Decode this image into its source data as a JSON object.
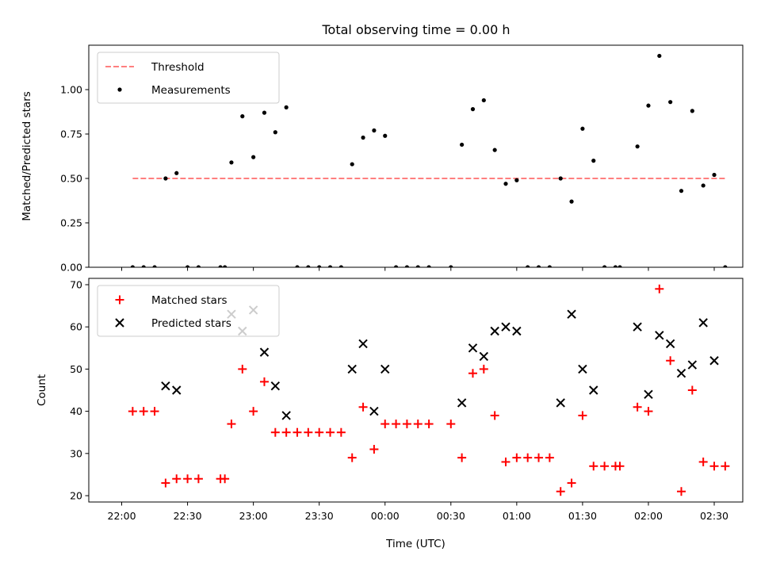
{
  "chart_data": [
    {
      "type": "scatter",
      "title": "Total observing time = 0.00 h",
      "xlabel": "",
      "ylabel": "Matched/Predicted stars",
      "ylim": [
        0,
        1.25
      ],
      "yticks": [
        "0.00",
        "0.25",
        "0.50",
        "0.75",
        "1.00"
      ],
      "xticks": [
        "22:00",
        "22:30",
        "23:00",
        "23:30",
        "00:00",
        "00:30",
        "01:00",
        "01:30",
        "02:00",
        "02:30"
      ],
      "xtick_labels_visible": false,
      "legend_position": "upper-left",
      "threshold": {
        "name": "Threshold",
        "y": 0.5,
        "x_start": "22:05",
        "x_end": "02:35",
        "color": "#ff7f7f",
        "style": "dashed"
      },
      "series": [
        {
          "name": "Measurements",
          "color": "#000000",
          "marker": "dot",
          "points": [
            [
              "22:05",
              0
            ],
            [
              "22:10",
              0
            ],
            [
              "22:15",
              0
            ],
            [
              "22:20",
              0.5
            ],
            [
              "22:25",
              0.53
            ],
            [
              "22:30",
              0
            ],
            [
              "22:35",
              0
            ],
            [
              "22:45",
              0
            ],
            [
              "22:47",
              0
            ],
            [
              "22:50",
              0.59
            ],
            [
              "22:55",
              0.85
            ],
            [
              "23:00",
              0.62
            ],
            [
              "23:05",
              0.87
            ],
            [
              "23:10",
              0.76
            ],
            [
              "23:15",
              0.9
            ],
            [
              "23:20",
              0
            ],
            [
              "23:25",
              0
            ],
            [
              "23:30",
              0
            ],
            [
              "23:35",
              0
            ],
            [
              "23:40",
              0
            ],
            [
              "23:45",
              0.58
            ],
            [
              "23:50",
              0.73
            ],
            [
              "23:55",
              0.77
            ],
            [
              "00:00",
              0.74
            ],
            [
              "00:05",
              0
            ],
            [
              "00:10",
              0
            ],
            [
              "00:15",
              0
            ],
            [
              "00:20",
              0
            ],
            [
              "00:30",
              0
            ],
            [
              "00:35",
              0.69
            ],
            [
              "00:40",
              0.89
            ],
            [
              "00:45",
              0.94
            ],
            [
              "00:50",
              0.66
            ],
            [
              "00:55",
              0.47
            ],
            [
              "01:00",
              0.49
            ],
            [
              "01:05",
              0
            ],
            [
              "01:10",
              0
            ],
            [
              "01:15",
              0
            ],
            [
              "01:20",
              0.5
            ],
            [
              "01:25",
              0.37
            ],
            [
              "01:30",
              0.78
            ],
            [
              "01:35",
              0.6
            ],
            [
              "01:40",
              0
            ],
            [
              "01:45",
              0
            ],
            [
              "01:47",
              0
            ],
            [
              "01:55",
              0.68
            ],
            [
              "02:00",
              0.91
            ],
            [
              "02:05",
              1.19
            ],
            [
              "02:10",
              0.93
            ],
            [
              "02:15",
              0.43
            ],
            [
              "02:20",
              0.88
            ],
            [
              "02:25",
              0.46
            ],
            [
              "02:30",
              0.52
            ],
            [
              "02:35",
              0
            ]
          ]
        }
      ]
    },
    {
      "type": "scatter",
      "title": "",
      "xlabel": "Time (UTC)",
      "ylabel": "Count",
      "ylim": [
        18.5,
        71.5
      ],
      "yticks": [
        "20",
        "30",
        "40",
        "50",
        "60",
        "70"
      ],
      "xticks": [
        "22:00",
        "22:30",
        "23:00",
        "23:30",
        "00:00",
        "00:30",
        "01:00",
        "01:30",
        "02:00",
        "02:30"
      ],
      "legend_position": "upper-left",
      "series": [
        {
          "name": "Matched stars",
          "color": "#ff0000",
          "marker": "plus",
          "points": [
            [
              "22:05",
              40
            ],
            [
              "22:10",
              40
            ],
            [
              "22:15",
              40
            ],
            [
              "22:20",
              23
            ],
            [
              "22:25",
              24
            ],
            [
              "22:30",
              24
            ],
            [
              "22:35",
              24
            ],
            [
              "22:45",
              24
            ],
            [
              "22:47",
              24
            ],
            [
              "22:50",
              37
            ],
            [
              "22:55",
              50
            ],
            [
              "23:00",
              40
            ],
            [
              "23:05",
              47
            ],
            [
              "23:10",
              35
            ],
            [
              "23:15",
              35
            ],
            [
              "23:20",
              35
            ],
            [
              "23:25",
              35
            ],
            [
              "23:30",
              35
            ],
            [
              "23:35",
              35
            ],
            [
              "23:40",
              35
            ],
            [
              "23:45",
              29
            ],
            [
              "23:50",
              41
            ],
            [
              "23:55",
              31
            ],
            [
              "00:00",
              37
            ],
            [
              "00:05",
              37
            ],
            [
              "00:10",
              37
            ],
            [
              "00:15",
              37
            ],
            [
              "00:20",
              37
            ],
            [
              "00:30",
              37
            ],
            [
              "00:35",
              29
            ],
            [
              "00:40",
              49
            ],
            [
              "00:45",
              50
            ],
            [
              "00:50",
              39
            ],
            [
              "00:55",
              28
            ],
            [
              "01:00",
              29
            ],
            [
              "01:05",
              29
            ],
            [
              "01:10",
              29
            ],
            [
              "01:15",
              29
            ],
            [
              "01:20",
              21
            ],
            [
              "01:25",
              23
            ],
            [
              "01:30",
              39
            ],
            [
              "01:35",
              27
            ],
            [
              "01:40",
              27
            ],
            [
              "01:45",
              27
            ],
            [
              "01:47",
              27
            ],
            [
              "01:55",
              41
            ],
            [
              "02:00",
              40
            ],
            [
              "02:05",
              69
            ],
            [
              "02:10",
              52
            ],
            [
              "02:15",
              21
            ],
            [
              "02:20",
              45
            ],
            [
              "02:25",
              28
            ],
            [
              "02:30",
              27
            ],
            [
              "02:35",
              27
            ]
          ]
        },
        {
          "name": "Predicted stars",
          "color": "#000000",
          "marker": "x",
          "points": [
            [
              "22:20",
              46
            ],
            [
              "22:25",
              45
            ],
            [
              "22:50",
              63
            ],
            [
              "22:55",
              59
            ],
            [
              "23:00",
              64
            ],
            [
              "23:05",
              54
            ],
            [
              "23:10",
              46
            ],
            [
              "23:15",
              39
            ],
            [
              "23:45",
              50
            ],
            [
              "23:50",
              56
            ],
            [
              "23:55",
              40
            ],
            [
              "00:00",
              50
            ],
            [
              "00:35",
              42
            ],
            [
              "00:40",
              55
            ],
            [
              "00:45",
              53
            ],
            [
              "00:50",
              59
            ],
            [
              "00:55",
              60
            ],
            [
              "01:00",
              59
            ],
            [
              "01:20",
              42
            ],
            [
              "01:25",
              63
            ],
            [
              "01:30",
              50
            ],
            [
              "01:35",
              45
            ],
            [
              "01:55",
              60
            ],
            [
              "02:00",
              44
            ],
            [
              "02:05",
              58
            ],
            [
              "02:10",
              56
            ],
            [
              "02:15",
              49
            ],
            [
              "02:20",
              51
            ],
            [
              "02:25",
              61
            ],
            [
              "02:30",
              52
            ]
          ]
        }
      ]
    }
  ]
}
